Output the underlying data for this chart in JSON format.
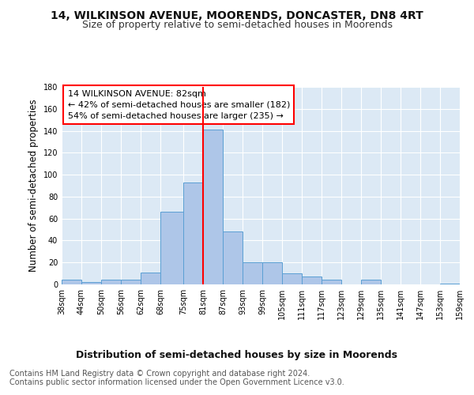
{
  "title": "14, WILKINSON AVENUE, MOORENDS, DONCASTER, DN8 4RT",
  "subtitle": "Size of property relative to semi-detached houses in Moorends",
  "xlabel_bottom": "Distribution of semi-detached houses by size in Moorends",
  "ylabel": "Number of semi-detached properties",
  "footnote": "Contains HM Land Registry data © Crown copyright and database right 2024.\nContains public sector information licensed under the Open Government Licence v3.0.",
  "bar_left_edges": [
    38,
    44,
    50,
    56,
    62,
    68,
    75,
    81,
    87,
    93,
    99,
    105,
    111,
    117,
    123,
    129,
    135,
    141,
    147,
    153
  ],
  "bar_widths": [
    6,
    6,
    6,
    6,
    6,
    7,
    6,
    6,
    6,
    6,
    6,
    6,
    6,
    6,
    6,
    6,
    6,
    6,
    6,
    6
  ],
  "bar_heights": [
    4,
    2,
    4,
    4,
    11,
    66,
    93,
    141,
    48,
    20,
    20,
    10,
    7,
    4,
    0,
    4,
    0,
    0,
    0,
    1
  ],
  "bar_color": "#aec6e8",
  "bar_edge_color": "#5a9fd4",
  "property_line_x": 81,
  "annotation_text_line1": "14 WILKINSON AVENUE: 82sqm",
  "annotation_text_line2": "← 42% of semi-detached houses are smaller (182)",
  "annotation_text_line3": "54% of semi-detached houses are larger (235) →",
  "x_tick_labels": [
    "38sqm",
    "44sqm",
    "50sqm",
    "56sqm",
    "62sqm",
    "68sqm",
    "75sqm",
    "81sqm",
    "87sqm",
    "93sqm",
    "99sqm",
    "105sqm",
    "111sqm",
    "117sqm",
    "123sqm",
    "129sqm",
    "135sqm",
    "141sqm",
    "147sqm",
    "153sqm",
    "159sqm"
  ],
  "x_tick_positions": [
    38,
    44,
    50,
    56,
    62,
    68,
    75,
    81,
    87,
    93,
    99,
    105,
    111,
    117,
    123,
    129,
    135,
    141,
    147,
    153,
    159
  ],
  "xlim": [
    38,
    159
  ],
  "ylim": [
    0,
    180
  ],
  "yticks": [
    0,
    20,
    40,
    60,
    80,
    100,
    120,
    140,
    160,
    180
  ],
  "bg_color": "#ffffff",
  "plot_bg_color": "#dce9f5",
  "grid_color": "#ffffff",
  "title_fontsize": 10,
  "subtitle_fontsize": 9,
  "annotation_fontsize": 8,
  "tick_fontsize": 7,
  "ylabel_fontsize": 8.5,
  "footnote_fontsize": 7
}
